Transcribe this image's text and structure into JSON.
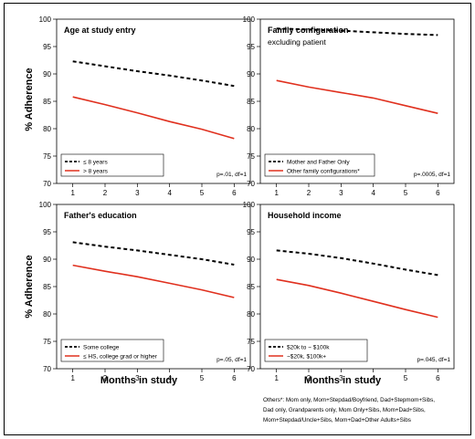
{
  "figure": {
    "ylabel": "% Adherence",
    "xlabel": "Months in study",
    "footnote_lines": [
      "Others*: Mom only, Mom+Stepdad/Boyfriend, Dad+Stepmom+Sibs,",
      "Dad only, Grandparents only, Mom Only+Sibs, Mom+Dad+Sibs,",
      "Mom+Stepdad/Uncle+Sibs, Mom+Dad+Other Adults+Sibs"
    ]
  },
  "colors": {
    "dashed_series": "#000000",
    "solid_series": "#e0301e"
  },
  "chart_data": [
    {
      "type": "line",
      "title": "Age at study entry",
      "subtitle": "",
      "x": [
        1,
        2,
        3,
        4,
        5,
        6
      ],
      "xlim": [
        0.5,
        6.5
      ],
      "ylim": [
        70,
        100
      ],
      "yticks": [
        70,
        75,
        80,
        85,
        90,
        95,
        100
      ],
      "legend_position": "bottom-left",
      "annotation": "p=.01, df=1",
      "series": [
        {
          "name": "≤ 8 years",
          "style": "dashed",
          "values": [
            92.3,
            91.4,
            90.5,
            89.7,
            88.8,
            87.8
          ]
        },
        {
          "name": "> 8 years",
          "style": "solid",
          "values": [
            85.8,
            84.4,
            82.9,
            81.3,
            79.9,
            78.2
          ]
        }
      ]
    },
    {
      "type": "line",
      "title": "Family configuration",
      "subtitle": "excluding patient",
      "x": [
        1,
        2,
        3,
        4,
        5,
        6
      ],
      "xlim": [
        0.5,
        6.5
      ],
      "ylim": [
        70,
        100
      ],
      "yticks": [
        70,
        75,
        80,
        85,
        90,
        95,
        100
      ],
      "legend_position": "bottom-left",
      "annotation": "p=.0005, df=1",
      "series": [
        {
          "name": "Mother and Father Only",
          "style": "dashed",
          "values": [
            98.3,
            98.1,
            97.9,
            97.6,
            97.3,
            97.1
          ]
        },
        {
          "name": "Other family configurations*",
          "style": "solid",
          "values": [
            88.8,
            87.6,
            86.6,
            85.6,
            84.2,
            82.8
          ]
        }
      ]
    },
    {
      "type": "line",
      "title": "Father's education",
      "subtitle": "",
      "x": [
        1,
        2,
        3,
        4,
        5,
        6
      ],
      "xlim": [
        0.5,
        6.5
      ],
      "ylim": [
        70,
        100
      ],
      "yticks": [
        70,
        75,
        80,
        85,
        90,
        95,
        100
      ],
      "legend_position": "bottom-left",
      "annotation": "p=.05, df=1",
      "series": [
        {
          "name": "Some college",
          "style": "dashed",
          "values": [
            93.1,
            92.3,
            91.6,
            90.8,
            90.0,
            89.0
          ]
        },
        {
          "name": "≤ HS, college grad or higher",
          "style": "solid",
          "values": [
            88.9,
            87.8,
            86.8,
            85.6,
            84.4,
            83.0
          ]
        }
      ]
    },
    {
      "type": "line",
      "title": "Household income",
      "subtitle": "",
      "x": [
        1,
        2,
        3,
        4,
        5,
        6
      ],
      "xlim": [
        0.5,
        6.5
      ],
      "ylim": [
        70,
        100
      ],
      "yticks": [
        70,
        75,
        80,
        85,
        90,
        95,
        100
      ],
      "legend_position": "bottom-left",
      "annotation": "p=.045, df=1",
      "series": [
        {
          "name": "$20k to ~ $100k",
          "style": "dashed",
          "values": [
            91.6,
            91.0,
            90.2,
            89.2,
            88.1,
            87.1
          ]
        },
        {
          "name": "~$20k, $100k+",
          "style": "solid",
          "values": [
            86.3,
            85.2,
            83.8,
            82.3,
            80.8,
            79.4
          ]
        }
      ]
    }
  ]
}
